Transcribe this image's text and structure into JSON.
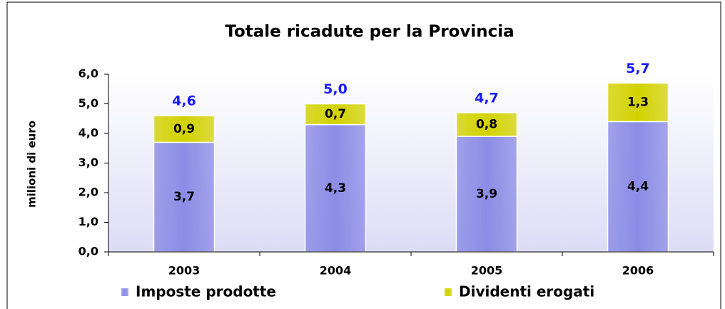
{
  "chart_data": {
    "type": "stacked_bar",
    "title": "Totale ricadute per la Provincia",
    "y_label": "milioni di euro",
    "categories": [
      "2003",
      "2004",
      "2005",
      "2006"
    ],
    "series": [
      {
        "name": "Imposte prodotte",
        "color": "#8c8ce6",
        "values": [
          3.7,
          4.3,
          3.9,
          4.4
        ],
        "value_labels": [
          "3,7",
          "4,3",
          "3,9",
          "4,4"
        ]
      },
      {
        "name": "Dividenti erogati",
        "color": "#d2d200",
        "values": [
          0.9,
          0.7,
          0.8,
          1.3
        ],
        "value_labels": [
          "0,9",
          "0,7",
          "0,8",
          "1,3"
        ]
      }
    ],
    "totals": [
      4.6,
      5.0,
      4.7,
      5.7
    ],
    "total_labels": [
      "4,6",
      "5,0",
      "4,7",
      "5,7"
    ],
    "total_color": "#1a1aff",
    "ylim": [
      0,
      6
    ],
    "yticks": [
      {
        "value": 0,
        "label": "0,0"
      },
      {
        "value": 1,
        "label": "1,0"
      },
      {
        "value": 2,
        "label": "2,0"
      },
      {
        "value": 3,
        "label": "3,0"
      },
      {
        "value": 4,
        "label": "4,0"
      },
      {
        "value": 5,
        "label": "5,0"
      },
      {
        "value": 6,
        "label": "6,0"
      }
    ]
  }
}
